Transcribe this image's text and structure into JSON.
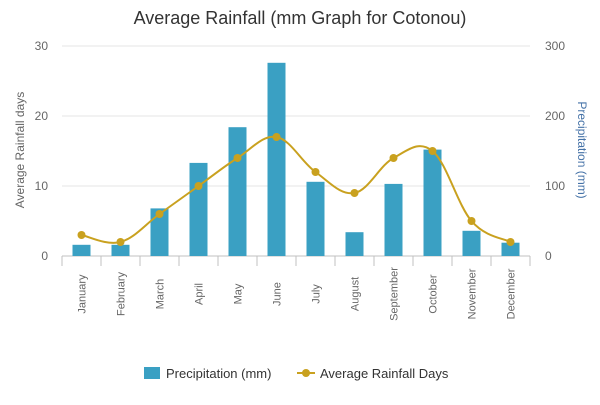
{
  "chart_data": {
    "type": "bar",
    "title": "Average Rainfall (mm Graph for Cotonou)",
    "categories": [
      "January",
      "February",
      "March",
      "April",
      "May",
      "June",
      "July",
      "August",
      "September",
      "October",
      "November",
      "December"
    ],
    "series": [
      {
        "name": "Precipitation (mm)",
        "type": "bar",
        "axis": "right",
        "color": "#3aa0c3",
        "values": [
          16,
          16,
          68,
          133,
          184,
          276,
          106,
          34,
          103,
          152,
          36,
          19
        ]
      },
      {
        "name": "Average Rainfall Days",
        "type": "line",
        "smooth": true,
        "axis": "left",
        "color": "#c9a11f",
        "values": [
          3,
          2,
          6,
          10,
          14,
          17,
          12,
          9,
          14,
          15,
          5,
          2
        ]
      }
    ],
    "y_left": {
      "label": "Average Rainfall days",
      "ylim": [
        0,
        30
      ],
      "ticks": [
        "0",
        "10",
        "20",
        "30"
      ]
    },
    "y_right": {
      "label": "Precipitation (mm)",
      "ylim": [
        0,
        300
      ],
      "ticks": [
        "0",
        "100",
        "200",
        "300"
      ]
    },
    "grid": true,
    "legend": "bottom-center"
  }
}
